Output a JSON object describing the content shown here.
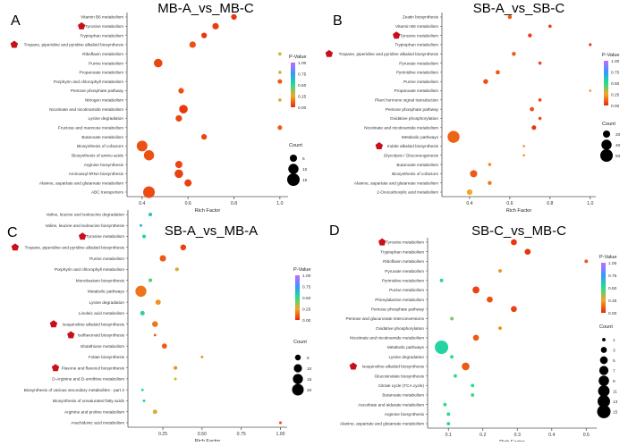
{
  "chart_data": [
    {
      "type": "scatter",
      "panel_letter": "A",
      "title": "MB-A_vs_MB-C",
      "xlabel": "Rich Factor",
      "xlim": [
        0.35,
        1.02
      ],
      "xticks": [
        0.4,
        0.6,
        0.8,
        1.0
      ],
      "xtick_labels": [
        "0.4",
        "0.6",
        "0.8",
        "1.0"
      ],
      "legend_pvalue_title": "P-Value",
      "legend_pvalue_ticks": [
        "1.00",
        "0.75",
        "0.50",
        "0.25",
        "0.00"
      ],
      "legend_count_title": "Count",
      "legend_count_values": [
        5,
        10,
        15
      ],
      "count_max": 15,
      "categories": [
        "Vitamin B6 metabolism",
        "Tyrosine metabolism",
        "Tryptophan metabolism",
        "Tropane, piperidine and pyridine alkaloid biosynthesis",
        "Riboflavin metabolism",
        "Purine metabolism",
        "Propanoate metabolism",
        "Porphyrin and chlorophyll metabolism",
        "Pentose phosphate pathway",
        "Nitrogen metabolism",
        "Nicotinate and nicotinamide metabolism",
        "Lysine degradation",
        "Fructose and mannose metabolism",
        "Butanoate metabolism",
        "Biosynthesis of cofactors",
        "Biosynthesis of amino acids",
        "Arginine biosynthesis",
        "Aminoacyl-tRNA biosynthesis",
        "Alanine, aspartate and glutamate metabolism",
        "ABC transporters"
      ],
      "rich_factor": [
        0.8,
        0.72,
        0.67,
        0.62,
        1.0,
        0.47,
        1.0,
        1.0,
        0.57,
        1.0,
        0.58,
        0.56,
        1.0,
        0.67,
        0.4,
        0.43,
        0.56,
        0.56,
        0.6,
        0.43
      ],
      "count": [
        3,
        4,
        3,
        4,
        1,
        7,
        1,
        2,
        3,
        1,
        7,
        4,
        2,
        3,
        11,
        10,
        5,
        7,
        5,
        13
      ],
      "p_value": [
        0.02,
        0.04,
        0.03,
        0.08,
        0.3,
        0.06,
        0.3,
        0.1,
        0.08,
        0.3,
        0.03,
        0.06,
        0.1,
        0.06,
        0.08,
        0.08,
        0.06,
        0.05,
        0.05,
        0.07
      ],
      "highlighted": [
        false,
        true,
        false,
        true,
        false,
        false,
        false,
        false,
        false,
        false,
        false,
        false,
        false,
        false,
        false,
        false,
        false,
        false,
        false,
        false
      ]
    },
    {
      "type": "scatter",
      "panel_letter": "B",
      "title": "SB-A_vs_SB-C",
      "xlabel": "Rich Factor",
      "xlim": [
        0.28,
        1.01
      ],
      "xticks": [
        0.4,
        0.6,
        0.8,
        1.0
      ],
      "xtick_labels": [
        "0.4",
        "0.6",
        "0.8",
        "1.0"
      ],
      "legend_pvalue_title": "P-Value",
      "legend_pvalue_ticks": [
        "1.00",
        "0.75",
        "0.50",
        "0.25",
        "0.00"
      ],
      "legend_count_title": "Count",
      "legend_count_values": [
        20,
        40,
        60
      ],
      "count_max": 60,
      "categories": [
        "Zeatin biosynthesis",
        "Vitamin B6 metabolism",
        "Tyrosine metabolism",
        "Tryptophan metabolism",
        "Tropane, piperidine and pyridine alkaloid biosynthesis",
        "Pyruvate metabolism",
        "Pyrimidine metabolism",
        "Purine metabolism",
        "Propanoate metabolism",
        "Plant hormone signal transduction",
        "Pentose phosphate pathway",
        "Oxidative phosphorylation",
        "Nicotinate and nicotinamide metabolism",
        "Metabolic pathways",
        "Indole alkaloid biosynthesis",
        "Glycolysis / Gluconeogenesis",
        "Butanoate metabolism",
        "Biosynthesis of cofactors",
        "Alanine, aspartate and glutamate metabolism",
        "2-Oxocarboxylic acid metabolism"
      ],
      "rich_factor": [
        0.6,
        0.8,
        0.7,
        1.0,
        0.62,
        0.75,
        0.54,
        0.48,
        1.0,
        0.75,
        0.71,
        0.75,
        0.72,
        0.32,
        0.67,
        0.67,
        0.5,
        0.42,
        0.5,
        0.4
      ],
      "count": [
        6,
        4,
        6,
        3,
        6,
        4,
        7,
        9,
        2,
        4,
        7,
        4,
        8,
        55,
        2,
        2,
        4,
        20,
        6,
        12
      ],
      "p_value": [
        0.1,
        0.04,
        0.05,
        0.02,
        0.1,
        0.07,
        0.1,
        0.08,
        0.2,
        0.06,
        0.08,
        0.08,
        0.03,
        0.12,
        0.2,
        0.2,
        0.2,
        0.1,
        0.15,
        0.25
      ],
      "highlighted": [
        false,
        false,
        true,
        false,
        true,
        false,
        false,
        false,
        false,
        false,
        false,
        false,
        false,
        false,
        true,
        false,
        false,
        false,
        false,
        false
      ]
    },
    {
      "type": "scatter",
      "panel_letter": "C",
      "title": "SB-A_vs_MB-A",
      "xlabel": "Rich Factor",
      "xlim": [
        0.05,
        1.02
      ],
      "xticks": [
        0.25,
        0.5,
        0.75,
        1.0
      ],
      "xtick_labels": [
        "0.25",
        "0.50",
        "0.75",
        "1.00"
      ],
      "legend_pvalue_title": "P-Value",
      "legend_pvalue_ticks": [
        "1.00",
        "0.75",
        "0.50",
        "0.25",
        "0.00"
      ],
      "legend_count_title": "Count",
      "legend_count_values": [
        5,
        10,
        15,
        20
      ],
      "count_max": 20,
      "categories": [
        "Valine, leucine and isoleucine degradation",
        "Valine, leucine and isoleucine biosynthesis",
        "Tyrosine metabolism",
        "Tropane, piperidine and pyridine alkaloid biosynthesis",
        "Purine metabolism",
        "Porphyrin and chlorophyll metabolism",
        "Monobactam biosynthesis",
        "Metabolic pathways",
        "Lysine degradation",
        "Linoleic acid metabolism",
        "Isoquinoline alkaloid biosynthesis",
        "Isoflavonoid biosynthesis",
        "Glutathione metabolism",
        "Folate biosynthesis",
        "Flavone and flavonol biosynthesis",
        "D-Arginine and D-ornithine metabolism",
        "Biosynthesis of various secondary metabolites - part 2",
        "Biosynthesis of unsaturated fatty acids",
        "Arginine and proline metabolism",
        "Arachidonic acid metabolism"
      ],
      "rich_factor": [
        0.17,
        0.11,
        0.13,
        0.38,
        0.25,
        0.34,
        0.17,
        0.11,
        0.22,
        0.12,
        0.2,
        0.2,
        0.26,
        0.5,
        0.33,
        0.33,
        0.12,
        0.13,
        0.2,
        1.0
      ],
      "count": [
        2,
        1,
        2,
        5,
        6,
        2,
        2,
        18,
        4,
        3,
        5,
        1,
        4,
        1,
        2,
        1,
        1,
        1,
        3,
        1
      ],
      "p_value": [
        0.6,
        0.7,
        0.55,
        0.05,
        0.1,
        0.3,
        0.45,
        0.15,
        0.2,
        0.55,
        0.15,
        0.1,
        0.1,
        0.2,
        0.2,
        0.3,
        0.5,
        0.55,
        0.3,
        0.05
      ],
      "highlighted": [
        false,
        false,
        true,
        true,
        false,
        false,
        false,
        false,
        false,
        false,
        true,
        true,
        false,
        false,
        true,
        false,
        false,
        false,
        false,
        false
      ]
    },
    {
      "type": "scatter",
      "panel_letter": "D",
      "title": "SB-C_vs_MB-C",
      "xlabel": "Rich Factor",
      "xlim": [
        0.05,
        0.52
      ],
      "xticks": [
        0.1,
        0.2,
        0.3,
        0.4,
        0.5
      ],
      "xtick_labels": [
        "0.1",
        "0.2",
        "0.3",
        "0.4",
        "0.5"
      ],
      "legend_pvalue_title": "P-Value",
      "legend_pvalue_ticks": [
        "1.00",
        "0.75",
        "0.50",
        "0.25",
        "0.00"
      ],
      "legend_count_title": "Count",
      "legend_count_values": [
        1,
        3,
        5,
        7,
        9,
        11,
        13,
        15
      ],
      "count_max": 15,
      "categories": [
        "Tyrosine metabolism",
        "Tryptophan metabolism",
        "Riboflavin metabolism",
        "Pyruvate metabolism",
        "Pyrimidine metabolism",
        "Purine metabolism",
        "Phenylalanine metabolism",
        "Pentose phosphate pathway",
        "Pentose and glucuronate interconversions",
        "Oxidative phosphorylation",
        "Nicotinate and nicotinamide metabolism",
        "Metabolic pathways",
        "Lysine degradation",
        "Isoquinoline alkaloid biosynthesis",
        "Glucosinolate biosynthesis",
        "Citrate cycle (TCA cycle)",
        "Butanoate metabolism",
        "Ascorbate and aldarate metabolism",
        "Arginine biosynthesis",
        "Alanine, aspartate and glutamate metabolism"
      ],
      "rich_factor": [
        0.29,
        0.33,
        0.5,
        0.25,
        0.08,
        0.18,
        0.22,
        0.29,
        0.11,
        0.25,
        0.18,
        0.08,
        0.11,
        0.15,
        0.12,
        0.17,
        0.17,
        0.09,
        0.1,
        0.1
      ],
      "count": [
        3,
        3,
        1,
        1,
        1,
        4,
        3,
        3,
        1,
        1,
        3,
        15,
        1,
        5,
        1,
        1,
        1,
        1,
        1,
        1
      ],
      "p_value": [
        0.03,
        0.02,
        0.1,
        0.2,
        0.55,
        0.05,
        0.08,
        0.05,
        0.4,
        0.2,
        0.1,
        0.55,
        0.5,
        0.1,
        0.5,
        0.5,
        0.45,
        0.5,
        0.5,
        0.55
      ],
      "highlighted": [
        true,
        false,
        false,
        false,
        false,
        false,
        false,
        false,
        false,
        false,
        false,
        false,
        false,
        true,
        false,
        false,
        false,
        false,
        false,
        false
      ]
    }
  ]
}
